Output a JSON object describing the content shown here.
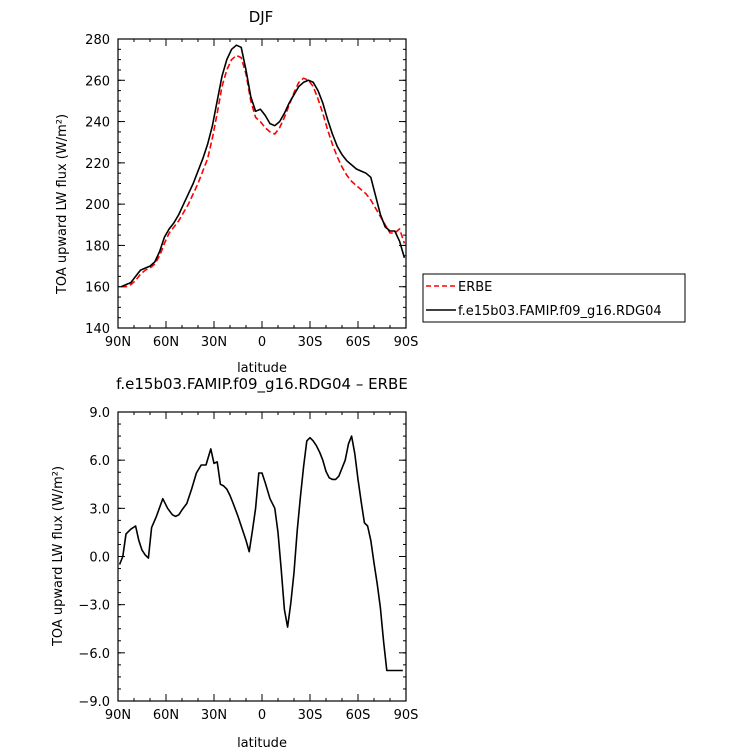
{
  "chart_data": [
    {
      "type": "line",
      "title": "DJF",
      "xlabel": "latitude",
      "ylabel": "TOA upward LW flux (W/m²)",
      "xlim": [
        -90,
        90
      ],
      "ylim": [
        140,
        280
      ],
      "x_ticks": [
        -90,
        -60,
        -30,
        0,
        30,
        60,
        90
      ],
      "x_tick_labels": [
        "90N",
        "60N",
        "30N",
        "0",
        "30S",
        "60S",
        "90S"
      ],
      "y_ticks": [
        140,
        160,
        180,
        200,
        220,
        240,
        260,
        280
      ],
      "y_tick_labels": [
        "140",
        "160",
        "180",
        "200",
        "220",
        "240",
        "260",
        "280"
      ],
      "legend": "outside-right",
      "series": [
        {
          "name": "ERBE",
          "color": "#ff0000",
          "style": "dashed",
          "x": [
            -88,
            -85,
            -82,
            -79,
            -76,
            -73,
            -70,
            -67,
            -64,
            -61,
            -58,
            -55,
            -52,
            -49,
            -46,
            -43,
            -40,
            -37,
            -34,
            -31,
            -28,
            -25,
            -22,
            -19,
            -16,
            -13,
            -10,
            -7,
            -4,
            -1,
            2,
            5,
            8,
            11,
            14,
            17,
            20,
            23,
            26,
            29,
            32,
            35,
            38,
            41,
            44,
            47,
            50,
            53,
            56,
            59,
            62,
            65,
            68,
            71,
            74,
            77,
            80,
            83,
            86,
            89
          ],
          "values": [
            160,
            160,
            161,
            163,
            166,
            168,
            169,
            171,
            175,
            181,
            186,
            189,
            192,
            196,
            200,
            205,
            210,
            216,
            222,
            232,
            244,
            257,
            265,
            270,
            272,
            271,
            263,
            250,
            242,
            240,
            237,
            235,
            234,
            237,
            242,
            248,
            254,
            259,
            261,
            260,
            257,
            251,
            244,
            236,
            229,
            223,
            218,
            214,
            211,
            209,
            207,
            205,
            202,
            198,
            194,
            190,
            186,
            186,
            188,
            181
          ]
        },
        {
          "name": "f.e15b03.FAMIP.f09_g16.RDG04",
          "color": "#000000",
          "style": "solid",
          "x": [
            -88,
            -85,
            -82,
            -79,
            -76,
            -73,
            -70,
            -67,
            -64,
            -61,
            -58,
            -55,
            -52,
            -49,
            -46,
            -43,
            -40,
            -37,
            -34,
            -31,
            -28,
            -25,
            -22,
            -19,
            -16,
            -13,
            -10,
            -7,
            -4,
            -1,
            2,
            5,
            8,
            11,
            14,
            17,
            20,
            23,
            26,
            29,
            32,
            35,
            38,
            41,
            44,
            47,
            50,
            53,
            56,
            59,
            62,
            65,
            68,
            71,
            74,
            77,
            80,
            83,
            86,
            89
          ],
          "values": [
            160,
            161,
            162,
            165,
            168,
            169,
            170,
            172,
            177,
            184,
            188,
            191,
            195,
            200,
            205,
            210,
            216,
            222,
            229,
            238,
            250,
            262,
            270,
            275,
            277,
            276,
            265,
            252,
            245,
            246,
            243,
            239,
            238,
            240,
            244,
            249,
            253,
            257,
            259,
            260,
            259,
            255,
            249,
            241,
            234,
            228,
            224,
            221,
            219,
            217,
            216,
            215,
            213,
            204,
            195,
            189,
            187,
            187,
            182,
            174
          ]
        }
      ]
    },
    {
      "type": "line",
      "title": "f.e15b03.FAMIP.f09_g16.RDG04 – ERBE",
      "xlabel": "latitude",
      "ylabel": "TOA upward LW flux (W/m²)",
      "xlim": [
        -90,
        90
      ],
      "ylim": [
        -9,
        9
      ],
      "x_ticks": [
        -90,
        -60,
        -30,
        0,
        30,
        60,
        90
      ],
      "x_tick_labels": [
        "90N",
        "60N",
        "30N",
        "0",
        "30S",
        "60S",
        "90S"
      ],
      "y_ticks": [
        -9,
        -6,
        -3,
        0,
        3,
        6,
        9
      ],
      "y_tick_labels": [
        "−9.0",
        "−6.0",
        "−3.0",
        "0.0",
        "3.0",
        "6.0",
        "9.0"
      ],
      "series": [
        {
          "color": "#000000",
          "x": [
            -89,
            -87,
            -85,
            -82,
            -79,
            -77,
            -75,
            -73,
            -71,
            -69,
            -66,
            -62,
            -59,
            -56,
            -54,
            -52,
            -50,
            -47,
            -44,
            -41,
            -38,
            -35,
            -32,
            -30,
            -28,
            -26,
            -24,
            -22,
            -20,
            -18,
            -15,
            -12,
            -10,
            -8,
            -6,
            -4,
            -2,
            0,
            2,
            5,
            8,
            10,
            12,
            14,
            16,
            18,
            20,
            22,
            24,
            26,
            28,
            30,
            32,
            34,
            36,
            38,
            40,
            42,
            44,
            46,
            48,
            50,
            52,
            54,
            56,
            58,
            60,
            62,
            64,
            66,
            68,
            70,
            72,
            74,
            76,
            78,
            80,
            82,
            84,
            86,
            88
          ],
          "values": [
            -0.5,
            0.0,
            1.4,
            1.7,
            1.9,
            1.0,
            0.4,
            0.1,
            -0.1,
            1.8,
            2.5,
            3.6,
            3.0,
            2.6,
            2.5,
            2.6,
            2.9,
            3.3,
            4.2,
            5.2,
            5.7,
            5.7,
            6.7,
            5.8,
            5.9,
            4.5,
            4.4,
            4.2,
            3.8,
            3.3,
            2.5,
            1.6,
            1.0,
            0.3,
            1.6,
            3.0,
            5.2,
            5.2,
            4.6,
            3.6,
            3.0,
            1.5,
            -0.8,
            -3.3,
            -4.4,
            -2.9,
            -1.0,
            1.6,
            3.7,
            5.6,
            7.2,
            7.4,
            7.2,
            6.9,
            6.5,
            6.0,
            5.3,
            4.9,
            4.8,
            4.8,
            5.0,
            5.5,
            6.0,
            7.0,
            7.5,
            6.4,
            4.8,
            3.4,
            2.1,
            1.9,
            1.0,
            -0.4,
            -1.7,
            -3.2,
            -5.3,
            -7.1,
            -7.1,
            -7.1,
            -7.1,
            -7.1,
            -7.1
          ]
        }
      ]
    }
  ]
}
